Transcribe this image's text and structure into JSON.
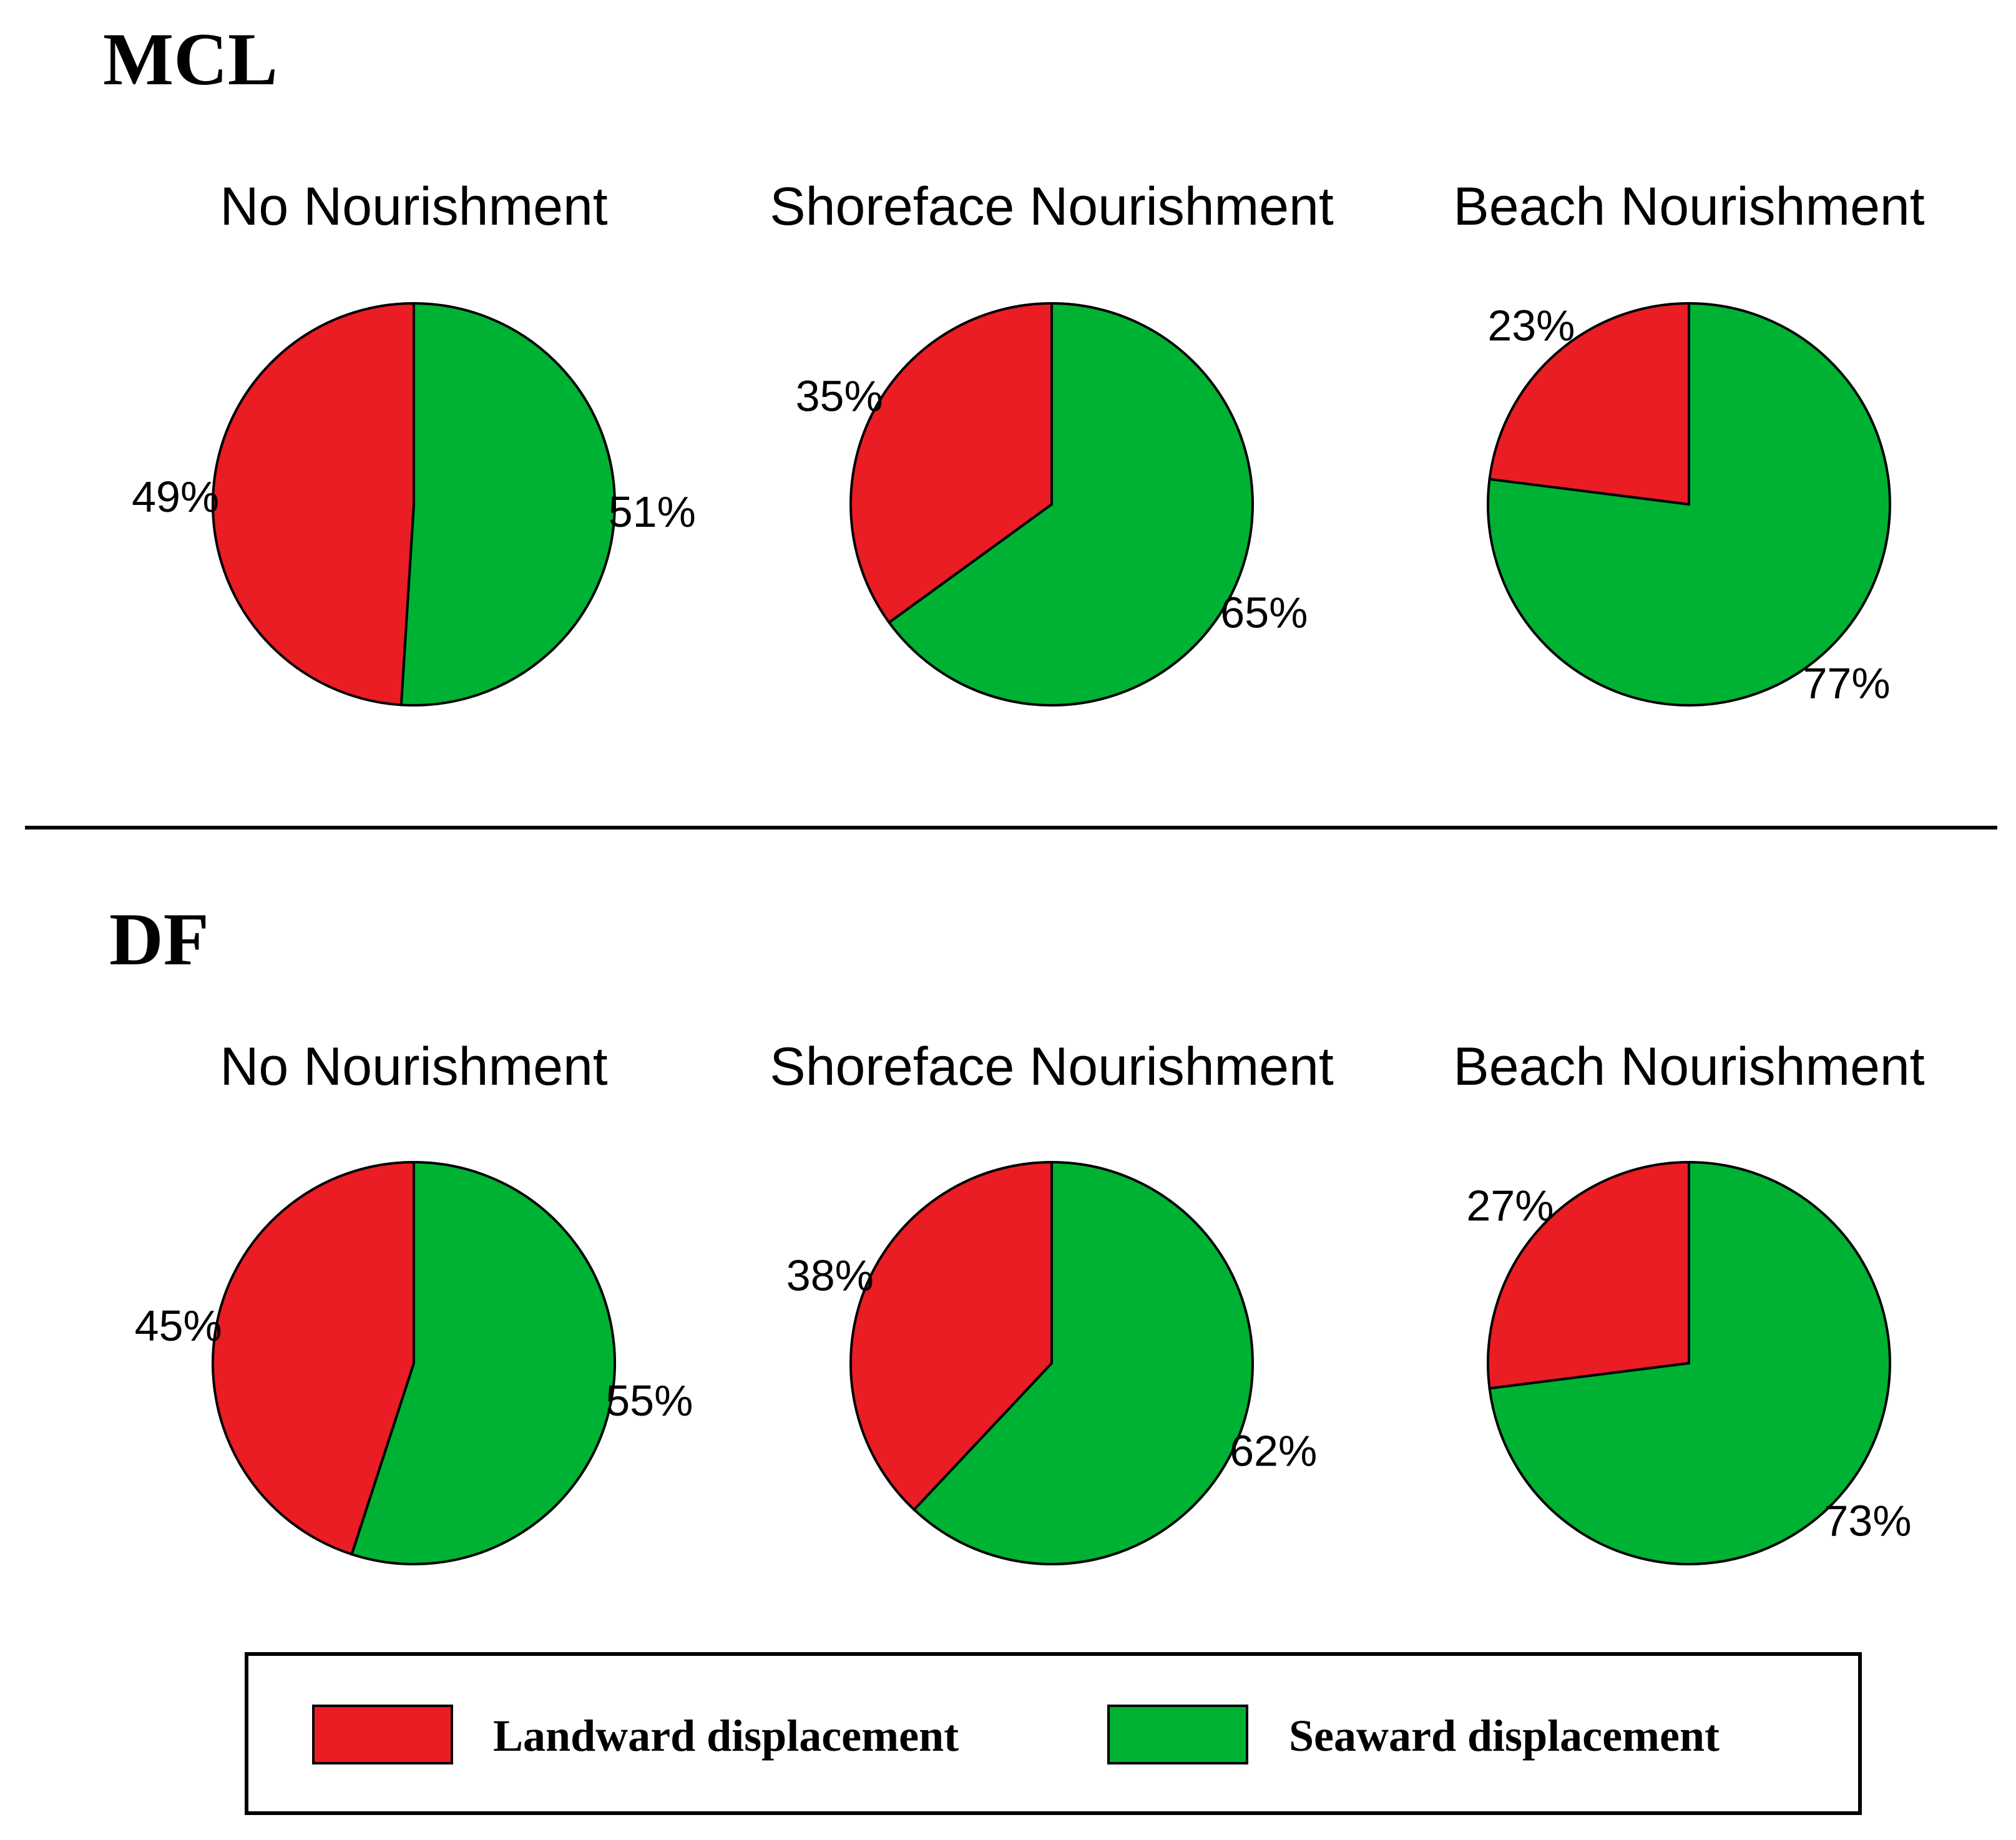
{
  "colors": {
    "landward": "#EA1C24",
    "seaward": "#00B233"
  },
  "chart_data": [
    {
      "type": "pie",
      "group": "MCL",
      "title": "No Nourishment",
      "labels": [
        "Landward displacement",
        "Seaward displacement"
      ],
      "values": [
        49,
        51
      ],
      "value_labels": [
        "49%",
        "51%"
      ]
    },
    {
      "type": "pie",
      "group": "MCL",
      "title": "Shoreface Nourishment",
      "labels": [
        "Landward displacement",
        "Seaward displacement"
      ],
      "values": [
        35,
        65
      ],
      "value_labels": [
        "35%",
        "65%"
      ]
    },
    {
      "type": "pie",
      "group": "MCL",
      "title": "Beach Nourishment",
      "labels": [
        "Landward displacement",
        "Seaward displacement"
      ],
      "values": [
        23,
        77
      ],
      "value_labels": [
        "23%",
        "77%"
      ]
    },
    {
      "type": "pie",
      "group": "DF",
      "title": "No Nourishment",
      "labels": [
        "Landward displacement",
        "Seaward displacement"
      ],
      "values": [
        45,
        55
      ],
      "value_labels": [
        "45%",
        "55%"
      ]
    },
    {
      "type": "pie",
      "group": "DF",
      "title": "Shoreface Nourishment",
      "labels": [
        "Landward displacement",
        "Seaward displacement"
      ],
      "values": [
        38,
        62
      ],
      "value_labels": [
        "38%",
        "62%"
      ]
    },
    {
      "type": "pie",
      "group": "DF",
      "title": "Beach Nourishment",
      "labels": [
        "Landward displacement",
        "Seaward displacement"
      ],
      "values": [
        27,
        73
      ],
      "value_labels": [
        "27%",
        "73%"
      ]
    }
  ],
  "sections": [
    {
      "title": "MCL"
    },
    {
      "title": "DF"
    }
  ],
  "legend": {
    "items": [
      {
        "label": "Landward displacement",
        "color_key": "landward"
      },
      {
        "label": "Seaward displacement",
        "color_key": "seaward"
      }
    ]
  }
}
